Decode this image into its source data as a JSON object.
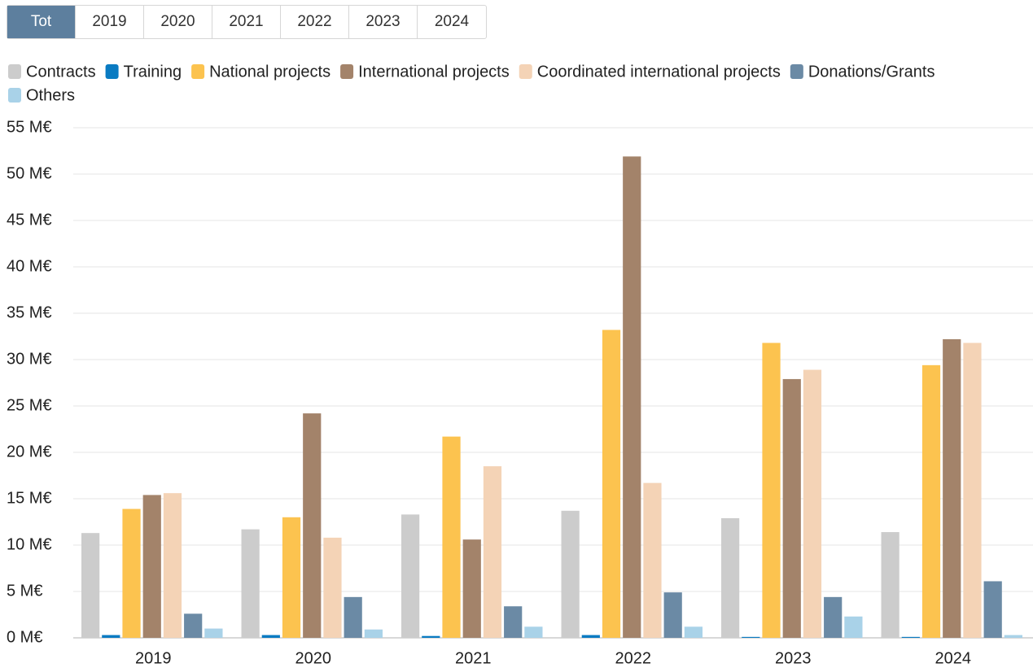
{
  "tabs": [
    "Tot",
    "2019",
    "2020",
    "2021",
    "2022",
    "2023",
    "2024"
  ],
  "active_tab": "Tot",
  "chart_data": {
    "type": "bar",
    "categories": [
      "2019",
      "2020",
      "2021",
      "2022",
      "2023",
      "2024"
    ],
    "series": [
      {
        "name": "Contracts",
        "color": "#cccccc",
        "values": [
          11.3,
          11.7,
          13.3,
          13.7,
          12.9,
          11.4
        ]
      },
      {
        "name": "Training",
        "color": "#0a7bc2",
        "values": [
          0.3,
          0.3,
          0.2,
          0.3,
          0.1,
          0.1
        ]
      },
      {
        "name": "National projects",
        "color": "#fcc34f",
        "values": [
          13.9,
          13.0,
          21.7,
          33.2,
          31.8,
          29.4
        ]
      },
      {
        "name": "International projects",
        "color": "#a3836a",
        "values": [
          15.4,
          24.2,
          10.6,
          51.9,
          27.9,
          32.2
        ]
      },
      {
        "name": "Coordinated international projects",
        "color": "#f4d3b6",
        "values": [
          15.6,
          10.8,
          18.5,
          16.7,
          28.9,
          31.8
        ]
      },
      {
        "name": "Donations/Grants",
        "color": "#6b8aa5",
        "values": [
          2.6,
          4.4,
          3.4,
          4.9,
          4.4,
          6.1
        ]
      },
      {
        "name": "Others",
        "color": "#a9d2e8",
        "values": [
          1.0,
          0.9,
          1.2,
          1.2,
          2.3,
          0.3
        ]
      }
    ],
    "ylim": [
      0,
      55
    ],
    "yticks": [
      {
        "value": 0,
        "label": "0 M€"
      },
      {
        "value": 5,
        "label": "5 M€"
      },
      {
        "value": 10,
        "label": "10 M€"
      },
      {
        "value": 15,
        "label": "15 M€"
      },
      {
        "value": 20,
        "label": "20 M€"
      },
      {
        "value": 25,
        "label": "25 M€"
      },
      {
        "value": 30,
        "label": "30 M€"
      },
      {
        "value": 35,
        "label": "35 M€"
      },
      {
        "value": 40,
        "label": "40 M€"
      },
      {
        "value": 45,
        "label": "45 M€"
      },
      {
        "value": 50,
        "label": "50 M€"
      },
      {
        "value": 55,
        "label": "55 M€"
      }
    ],
    "grid": true
  }
}
